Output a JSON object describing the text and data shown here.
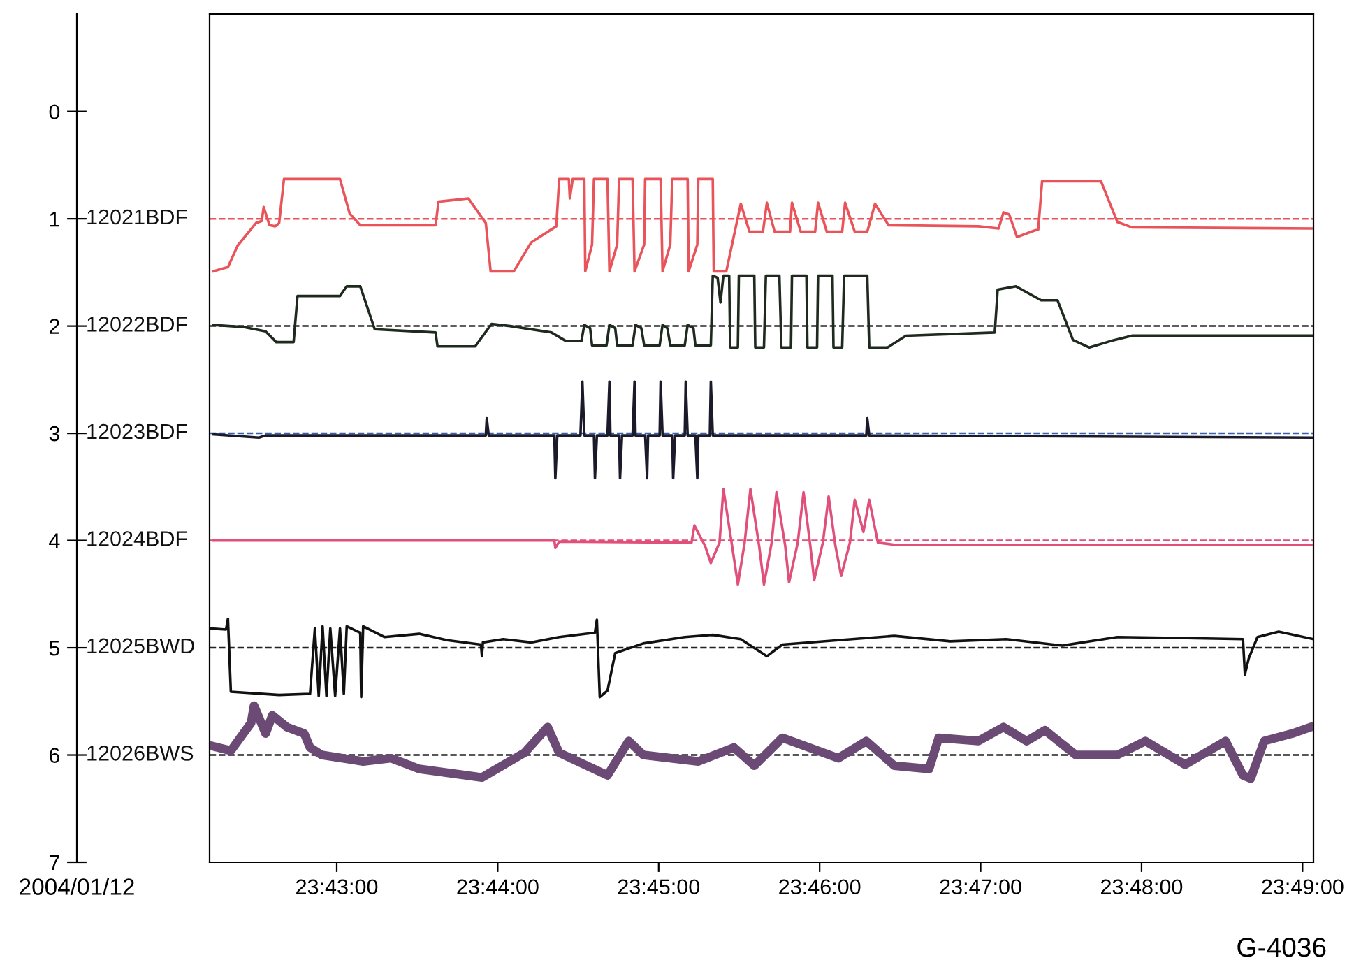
{
  "chart_data": {
    "type": "line",
    "xlim": [
      23.7035,
      23.8178
    ],
    "ylim": [
      7,
      -0.91
    ],
    "xticks": [
      {
        "value": 23.716667,
        "label": "23:43:00"
      },
      {
        "value": 23.733333,
        "label": "23:44:00"
      },
      {
        "value": 23.75,
        "label": "23:45:00"
      },
      {
        "value": 23.766667,
        "label": "23:46:00"
      },
      {
        "value": 23.783333,
        "label": "23:47:00"
      },
      {
        "value": 23.8,
        "label": "23:48:00"
      },
      {
        "value": 23.816667,
        "label": "23:49:00"
      }
    ],
    "yticks": [
      0,
      1,
      2,
      3,
      4,
      5,
      6,
      7
    ],
    "grid": false,
    "legend": false,
    "marker": "none",
    "line_style": "solid",
    "annotations": [
      "2004/01/12",
      "G-4036"
    ],
    "ref_lines": [
      {
        "axis": "y",
        "value": 1,
        "color": "#e8545a",
        "line_style": "dashed"
      },
      {
        "axis": "y",
        "value": 2,
        "color": "#2a2a2a",
        "line_style": "dashed"
      },
      {
        "axis": "y",
        "value": 3,
        "color": "#3a5fb0",
        "line_style": "dashed"
      },
      {
        "axis": "y",
        "value": 4,
        "color": "#e0507a",
        "line_style": "dashed"
      },
      {
        "axis": "y",
        "value": 5,
        "color": "#222222",
        "line_style": "dashed"
      },
      {
        "axis": "y",
        "value": 6,
        "color": "#222222",
        "line_style": "dashed"
      }
    ],
    "series": [
      {
        "name": "12021BDF",
        "color": "#e8545a",
        "x": [
          23.7039,
          23.7054,
          23.7064,
          23.7083,
          23.7089,
          23.7091,
          23.7097,
          23.7103,
          23.7107,
          23.7112,
          23.717,
          23.718,
          23.7191,
          23.7269,
          23.7272,
          23.7303,
          23.7321,
          23.7326,
          23.735,
          23.7368,
          23.7394,
          23.7397,
          23.7407,
          23.7408,
          23.7411,
          23.7423,
          23.7424,
          23.7431,
          23.7433,
          23.7447,
          23.7449,
          23.7457,
          23.7459,
          23.7473,
          23.7475,
          23.7485,
          23.7486,
          23.7502,
          23.7504,
          23.7512,
          23.7514,
          23.753,
          23.7531,
          23.754,
          23.7541,
          23.7556,
          23.7557,
          23.757,
          23.7585,
          23.7594,
          23.7608,
          23.7612,
          23.762,
          23.7636,
          23.7638,
          23.7647,
          23.7662,
          23.7665,
          23.7674,
          23.769,
          23.7693,
          23.7703,
          23.7716,
          23.7724,
          23.7738,
          23.7831,
          23.7852,
          23.7857,
          23.7863,
          23.7871,
          23.7889,
          23.7893,
          23.7897,
          23.7958,
          23.7975,
          23.799,
          23.8178
        ],
        "values": [
          1.49,
          1.45,
          1.25,
          1.04,
          1.02,
          0.89,
          1.06,
          1.07,
          1.04,
          0.63,
          0.63,
          0.95,
          1.06,
          1.06,
          0.84,
          0.81,
          1.04,
          1.49,
          1.49,
          1.22,
          1.07,
          0.63,
          0.63,
          0.81,
          0.63,
          0.63,
          1.49,
          1.24,
          0.63,
          0.63,
          1.49,
          1.24,
          0.63,
          0.63,
          1.49,
          1.24,
          0.63,
          0.63,
          1.49,
          1.24,
          0.63,
          0.63,
          1.49,
          1.24,
          0.63,
          0.63,
          1.49,
          1.49,
          0.86,
          1.12,
          1.12,
          0.85,
          1.12,
          1.12,
          0.85,
          1.12,
          1.12,
          0.85,
          1.12,
          1.12,
          0.85,
          1.12,
          1.12,
          0.86,
          1.06,
          1.07,
          1.09,
          0.94,
          0.96,
          1.17,
          1.11,
          1.1,
          0.65,
          0.65,
          1.03,
          1.08,
          1.09
        ]
      },
      {
        "name": "12022BDF",
        "color": "#1e2a1e",
        "x": [
          23.7039,
          23.7071,
          23.7093,
          23.7104,
          23.7122,
          23.7126,
          23.717,
          23.7177,
          23.7191,
          23.7206,
          23.7269,
          23.7271,
          23.731,
          23.7327,
          23.7346,
          23.7389,
          23.7404,
          23.742,
          23.7423,
          23.7429,
          23.7431,
          23.7446,
          23.7449,
          23.7455,
          23.7457,
          23.7473,
          23.7476,
          23.7482,
          23.7485,
          23.7501,
          23.7504,
          23.7509,
          23.7512,
          23.7527,
          23.753,
          23.7536,
          23.7538,
          23.7554,
          23.7556,
          23.7561,
          23.7564,
          23.7567,
          23.7573,
          23.7574,
          23.7582,
          23.7583,
          23.7599,
          23.76,
          23.7609,
          23.7611,
          23.7625,
          23.7627,
          23.7637,
          23.7638,
          23.7653,
          23.7654,
          23.7664,
          23.7665,
          23.768,
          23.7681,
          23.769,
          23.7692,
          23.7716,
          23.7718,
          23.7737,
          23.7756,
          23.7848,
          23.7851,
          23.787,
          23.7896,
          23.7913,
          23.7929,
          23.7946,
          23.7968,
          23.799,
          23.8178
        ],
        "values": [
          1.99,
          2.01,
          2.05,
          2.15,
          2.15,
          1.72,
          1.72,
          1.63,
          1.63,
          2.03,
          2.06,
          2.19,
          2.19,
          1.98,
          2.0,
          2.06,
          2.14,
          2.14,
          1.99,
          2.02,
          2.18,
          2.18,
          1.99,
          2.02,
          2.18,
          2.18,
          1.99,
          2.02,
          2.18,
          2.18,
          1.99,
          2.02,
          2.18,
          2.18,
          1.99,
          2.02,
          2.18,
          2.18,
          1.53,
          1.55,
          1.78,
          1.53,
          1.53,
          2.2,
          2.2,
          1.53,
          1.53,
          2.2,
          2.2,
          1.53,
          1.53,
          2.2,
          2.2,
          1.53,
          1.53,
          2.2,
          2.2,
          1.53,
          1.53,
          2.2,
          2.2,
          1.53,
          1.53,
          2.2,
          2.2,
          2.09,
          2.06,
          1.66,
          1.63,
          1.76,
          1.76,
          2.13,
          2.2,
          2.14,
          2.09,
          2.09
        ]
      },
      {
        "name": "12023BDF",
        "color": "#1a1a2a",
        "x": [
          23.7039,
          23.7086,
          23.7093,
          23.7321,
          23.7322,
          23.7324,
          23.7392,
          23.7393,
          23.7395,
          23.7419,
          23.7421,
          23.7423,
          23.7433,
          23.7434,
          23.7436,
          23.7447,
          23.7449,
          23.745,
          23.7459,
          23.746,
          23.7462,
          23.7473,
          23.7475,
          23.7476,
          23.7486,
          23.7488,
          23.7489,
          23.7501,
          23.7502,
          23.7504,
          23.7514,
          23.7515,
          23.7517,
          23.7527,
          23.7528,
          23.753,
          23.7538,
          23.754,
          23.7541,
          23.7553,
          23.7554,
          23.7556,
          23.7715,
          23.7716,
          23.7718,
          23.8178
        ],
        "values": [
          3.01,
          3.04,
          3.02,
          3.02,
          2.86,
          3.02,
          3.02,
          3.42,
          3.02,
          3.02,
          2.52,
          3.02,
          3.02,
          3.42,
          3.02,
          3.02,
          2.52,
          3.02,
          3.02,
          3.42,
          3.02,
          3.02,
          2.52,
          3.02,
          3.02,
          3.42,
          3.02,
          3.02,
          2.52,
          3.02,
          3.02,
          3.42,
          3.02,
          3.02,
          2.52,
          3.02,
          3.02,
          3.42,
          3.02,
          3.02,
          2.52,
          3.02,
          3.02,
          2.86,
          3.02,
          3.04
        ]
      },
      {
        "name": "12024BDF",
        "color": "#e0507a",
        "x": [
          23.7039,
          23.7392,
          23.7393,
          23.7397,
          23.7534,
          23.7537,
          23.7548,
          23.7554,
          23.7563,
          23.7567,
          23.7576,
          23.7582,
          23.7589,
          23.7595,
          23.7604,
          23.7609,
          23.7617,
          23.7622,
          23.7631,
          23.7635,
          23.7644,
          23.765,
          23.7657,
          23.7661,
          23.767,
          23.7676,
          23.7683,
          23.7689,
          23.7698,
          23.7703,
          23.7712,
          23.7718,
          23.7727,
          23.7744,
          23.8178
        ],
        "values": [
          4.0,
          4.0,
          4.07,
          4.01,
          4.02,
          3.86,
          4.05,
          4.21,
          4.02,
          3.52,
          4.05,
          4.41,
          4.02,
          3.52,
          4.05,
          4.41,
          4.02,
          3.55,
          4.05,
          4.39,
          4.02,
          3.55,
          4.05,
          4.37,
          4.02,
          3.59,
          4.05,
          4.33,
          4.02,
          3.62,
          3.92,
          3.62,
          4.02,
          4.04,
          4.04
        ]
      },
      {
        "name": "12025BWD",
        "color": "#111111",
        "x": [
          23.7035,
          23.7052,
          23.7054,
          23.7057,
          23.7107,
          23.7139,
          23.7144,
          23.7148,
          23.7152,
          23.7156,
          23.716,
          23.7165,
          23.717,
          23.7174,
          23.7177,
          23.7191,
          23.7192,
          23.7194,
          23.7216,
          23.7252,
          23.7281,
          23.7316,
          23.7317,
          23.7318,
          23.7339,
          23.7368,
          23.7397,
          23.7434,
          23.7436,
          23.7439,
          23.7447,
          23.7455,
          23.7484,
          23.7527,
          23.7556,
          23.7585,
          23.7612,
          23.7628,
          23.7686,
          23.7744,
          23.7802,
          23.786,
          23.7918,
          23.7975,
          23.8047,
          23.8105,
          23.8107,
          23.8111,
          23.812,
          23.8142,
          23.8178
        ],
        "values": [
          4.82,
          4.83,
          4.73,
          5.41,
          5.44,
          5.43,
          4.82,
          5.45,
          4.8,
          5.45,
          4.82,
          5.45,
          4.82,
          5.43,
          4.8,
          4.86,
          5.46,
          4.8,
          4.9,
          4.87,
          4.93,
          4.97,
          5.08,
          4.95,
          4.92,
          4.95,
          4.9,
          4.86,
          4.74,
          5.46,
          5.4,
          5.05,
          4.96,
          4.9,
          4.88,
          4.92,
          5.08,
          4.97,
          4.93,
          4.89,
          4.94,
          4.92,
          4.98,
          4.9,
          4.91,
          4.92,
          5.25,
          5.1,
          4.9,
          4.85,
          4.92
        ]
      },
      {
        "name": "12026BWS",
        "color": "#6b4a75",
        "x": [
          23.7035,
          23.7057,
          23.7078,
          23.7081,
          23.7093,
          23.71,
          23.7115,
          23.7133,
          23.7139,
          23.7151,
          23.7194,
          23.7223,
          23.7252,
          23.7317,
          23.7361,
          23.7385,
          23.7397,
          23.7447,
          23.7469,
          23.7484,
          23.7541,
          23.7578,
          23.7599,
          23.7628,
          23.7686,
          23.7715,
          23.7744,
          23.778,
          23.779,
          23.7831,
          23.7857,
          23.7881,
          23.79,
          23.7932,
          23.7975,
          23.8004,
          23.8045,
          23.8087,
          23.8105,
          23.8113,
          23.8127,
          23.8156,
          23.8175
        ],
        "values": [
          5.91,
          5.96,
          5.7,
          5.54,
          5.8,
          5.63,
          5.74,
          5.8,
          5.93,
          6.0,
          6.06,
          6.03,
          6.13,
          6.21,
          5.98,
          5.74,
          5.98,
          6.19,
          5.87,
          6.0,
          6.06,
          5.93,
          6.1,
          5.84,
          6.03,
          5.87,
          6.1,
          6.13,
          5.84,
          5.87,
          5.74,
          5.87,
          5.77,
          6.0,
          6.0,
          5.87,
          6.09,
          5.87,
          6.19,
          6.22,
          5.87,
          5.8,
          5.74
        ]
      }
    ]
  }
}
